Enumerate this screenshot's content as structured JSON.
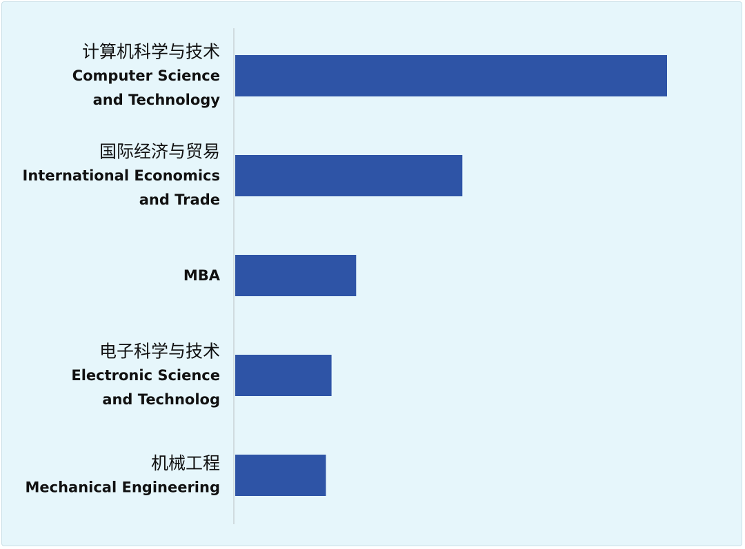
{
  "chart_data": {
    "type": "bar",
    "orientation": "horizontal",
    "title": "",
    "xlabel": "",
    "ylabel": "",
    "grid": false,
    "legend": "none",
    "bar_color": "#2e54a6",
    "background_color": "#e6f6fb",
    "xlim": [
      0,
      100
    ],
    "categories": [
      {
        "cn": "计算机科学与技术",
        "en": [
          "Computer Science",
          "and Technology"
        ]
      },
      {
        "cn": "国际经济与贸易",
        "en": [
          "International Economics",
          "and Trade"
        ]
      },
      {
        "cn": "",
        "en": [
          "MBA"
        ]
      },
      {
        "cn": "电子科学与技术",
        "en": [
          "Electronic Science",
          "and Technolog"
        ]
      },
      {
        "cn": "机械工程",
        "en": [
          "Mechanical Engineering"
        ]
      }
    ],
    "values": [
      100,
      52.6,
      28,
      22.3,
      21
    ]
  }
}
